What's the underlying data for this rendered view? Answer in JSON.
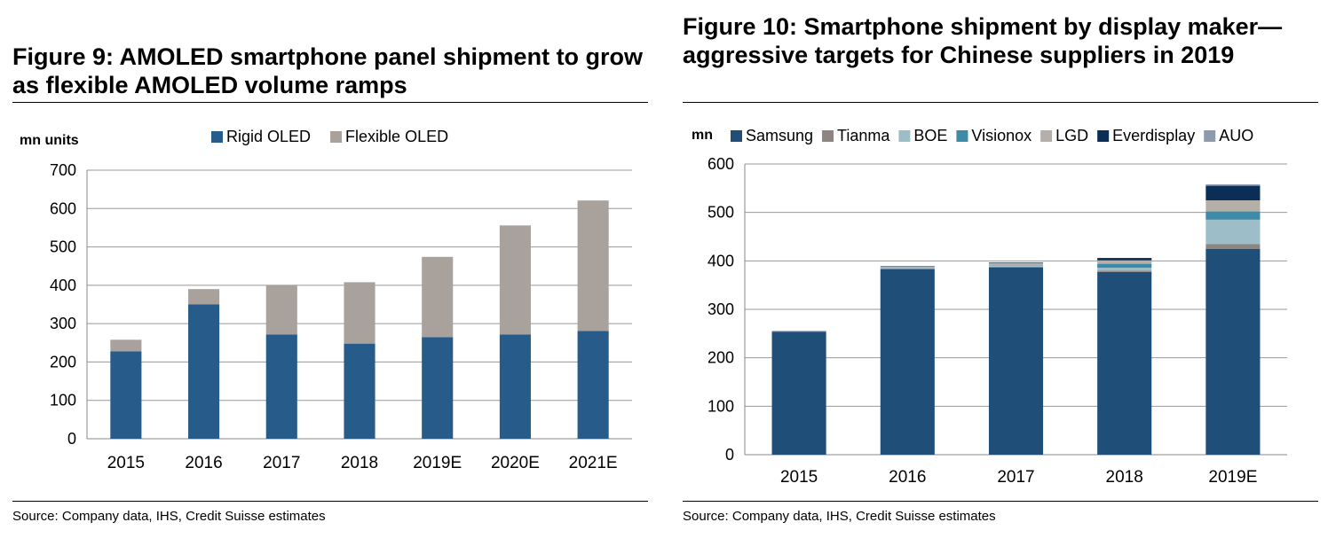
{
  "figures": [
    {
      "title": "Figure 9: AMOLED smartphone panel shipment to grow as flexible AMOLED volume ramps",
      "source": "Source: Company data, IHS, Credit Suisse estimates"
    },
    {
      "title": "Figure 10: Smartphone shipment by display maker—aggressive targets for Chinese suppliers in 2019",
      "source": "Source: Company data, IHS, Credit Suisse estimates"
    }
  ],
  "chart_data": [
    {
      "type": "bar",
      "stacked": true,
      "ylabel": "mn units",
      "ylim": [
        0,
        700
      ],
      "yticks": [
        0,
        100,
        200,
        300,
        400,
        500,
        600,
        700
      ],
      "categories": [
        "2015",
        "2016",
        "2017",
        "2018",
        "2019E",
        "2020E",
        "2021E"
      ],
      "grid": true,
      "legend": "top",
      "series": [
        {
          "name": "Rigid OLED",
          "color": "#265B8A",
          "values": [
            228,
            350,
            272,
            248,
            265,
            272,
            281
          ]
        },
        {
          "name": "Flexible OLED",
          "color": "#A8A19C",
          "values": [
            30,
            40,
            128,
            160,
            209,
            284,
            340
          ]
        }
      ]
    },
    {
      "type": "bar",
      "stacked": true,
      "ylabel": "mn",
      "ylim": [
        0,
        600
      ],
      "yticks": [
        0,
        100,
        200,
        300,
        400,
        500,
        600
      ],
      "categories": [
        "2015",
        "2016",
        "2017",
        "2018",
        "2019E"
      ],
      "grid": true,
      "legend": "top",
      "series": [
        {
          "name": "Samsung",
          "color": "#1F4E79",
          "values": [
            254,
            383,
            386,
            377,
            425
          ]
        },
        {
          "name": "Tianma",
          "color": "#8C8581",
          "values": [
            0,
            1,
            2,
            3,
            10
          ]
        },
        {
          "name": "BOE",
          "color": "#9DBDC9",
          "values": [
            0,
            1,
            2,
            6,
            50
          ]
        },
        {
          "name": "Visionox",
          "color": "#3D8BA8",
          "values": [
            0,
            0,
            1,
            8,
            17
          ]
        },
        {
          "name": "LGD",
          "color": "#B5AFAA",
          "values": [
            2,
            3,
            5,
            7,
            23
          ]
        },
        {
          "name": "Everdisplay",
          "color": "#0A2E55",
          "values": [
            0,
            1,
            1,
            5,
            30
          ]
        },
        {
          "name": "AUO",
          "color": "#8E9BAE",
          "values": [
            0,
            0,
            0,
            0,
            3
          ]
        }
      ]
    }
  ]
}
